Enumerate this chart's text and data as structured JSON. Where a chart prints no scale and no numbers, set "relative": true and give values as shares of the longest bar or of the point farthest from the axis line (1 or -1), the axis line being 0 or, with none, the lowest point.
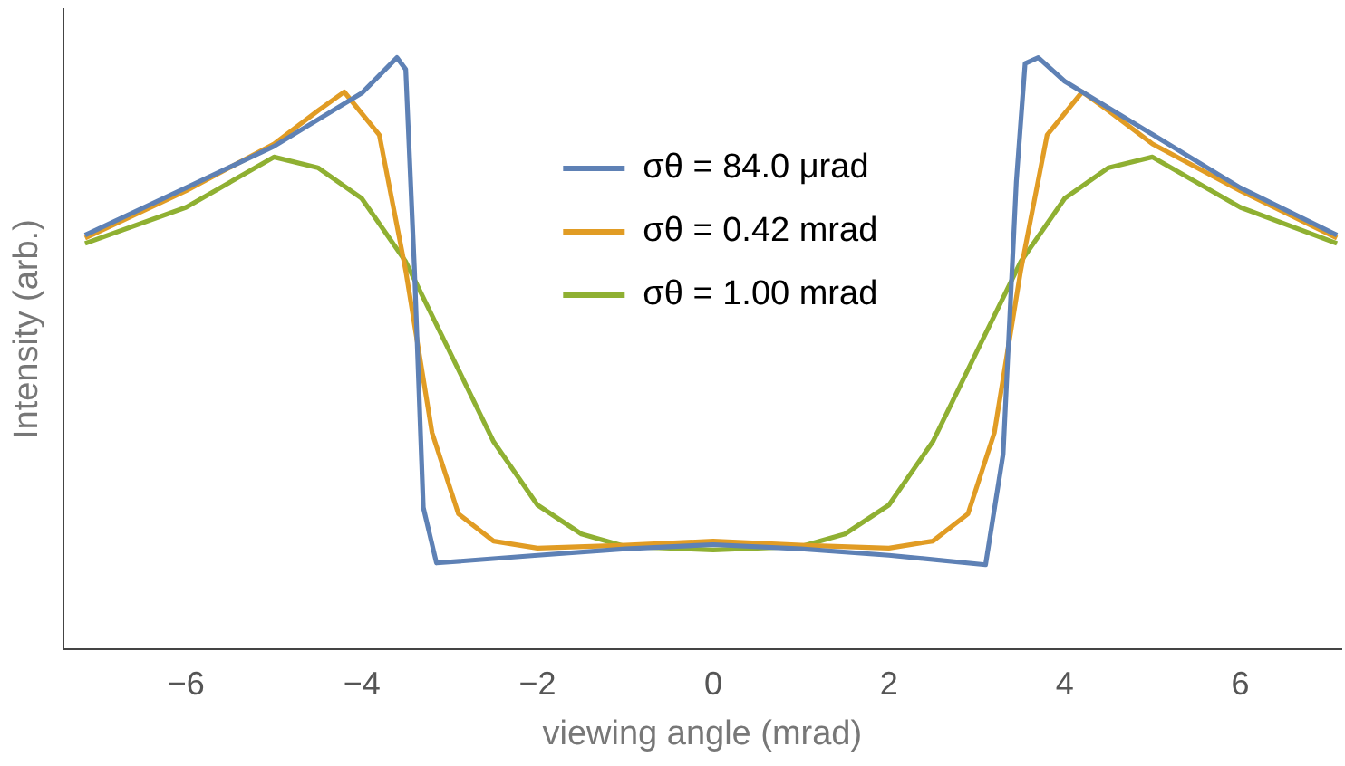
{
  "chart_data": {
    "type": "line",
    "xlabel": "viewing angle (mrad)",
    "ylabel": "Intensity (arb.)",
    "relative": true,
    "xlim": [
      -7.4,
      7.15
    ],
    "xticks": [
      -6,
      -4,
      -2,
      0,
      2,
      4,
      6
    ],
    "grid": false,
    "legend": "top",
    "marker": "none",
    "line_style": "solid",
    "series": [
      {
        "name": "σθ = 84.0 μrad",
        "color": "#5e81b5",
        "x": [
          -7.15,
          -6,
          -5,
          -4,
          -3.6,
          -3.5,
          -3.4,
          -3.3,
          -3.15,
          -2,
          -1,
          0,
          1,
          2,
          3.1,
          3.3,
          3.45,
          3.55,
          3.7,
          4,
          5,
          6,
          7.1
        ],
        "values": [
          0.7,
          0.78,
          0.85,
          0.94,
          1.0,
          0.98,
          0.64,
          0.24,
          0.146,
          0.159,
          0.17,
          0.177,
          0.17,
          0.159,
          0.143,
          0.33,
          0.79,
          0.99,
          1.0,
          0.96,
          0.87,
          0.78,
          0.7
        ]
      },
      {
        "name": "σθ = 0.42 mrad",
        "color": "#e19c24",
        "x": [
          -7.15,
          -6,
          -5,
          -4.5,
          -4.2,
          -3.8,
          -3.5,
          -3.2,
          -2.9,
          -2.5,
          -2,
          -1,
          0,
          1,
          2,
          2.5,
          2.9,
          3.2,
          3.5,
          3.8,
          4.2,
          4.5,
          5,
          6,
          7.1
        ],
        "values": [
          0.695,
          0.775,
          0.854,
          0.91,
          0.942,
          0.869,
          0.64,
          0.366,
          0.229,
          0.183,
          0.171,
          0.176,
          0.183,
          0.176,
          0.171,
          0.183,
          0.229,
          0.366,
          0.64,
          0.869,
          0.942,
          0.91,
          0.854,
          0.775,
          0.695
        ]
      },
      {
        "name": "σθ = 1.00 mrad",
        "color": "#8fb032",
        "x": [
          -7.15,
          -6,
          -5,
          -4.5,
          -4,
          -3.5,
          -3,
          -2.5,
          -2,
          -1.5,
          -1,
          0,
          1,
          1.5,
          2,
          2.5,
          3,
          3.5,
          4,
          4.5,
          5,
          6,
          7.1
        ],
        "values": [
          0.686,
          0.747,
          0.832,
          0.814,
          0.762,
          0.655,
          0.503,
          0.351,
          0.244,
          0.195,
          0.174,
          0.168,
          0.174,
          0.195,
          0.244,
          0.351,
          0.503,
          0.655,
          0.762,
          0.814,
          0.832,
          0.747,
          0.686
        ]
      }
    ]
  }
}
